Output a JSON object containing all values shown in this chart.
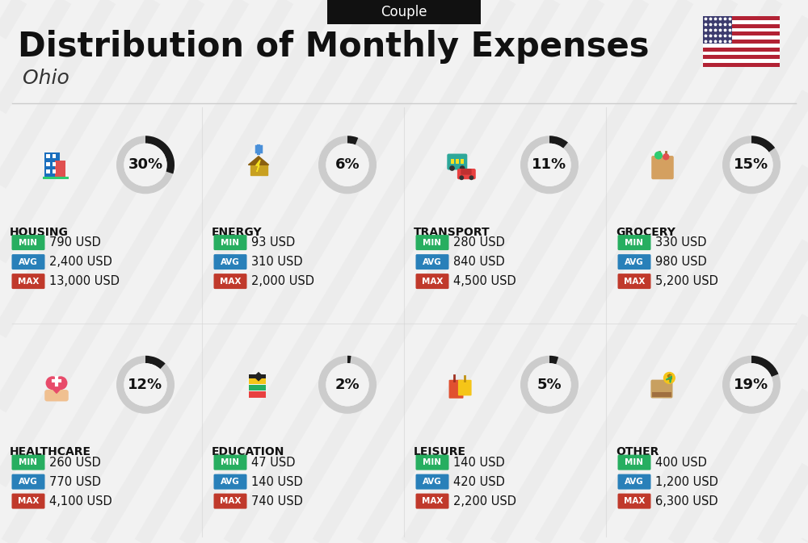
{
  "title": "Distribution of Monthly Expenses",
  "subtitle": "Ohio",
  "tag": "Couple",
  "bg_color": "#f2f2f2",
  "stripe_color": "#e8e8e8",
  "categories": [
    {
      "name": "HOUSING",
      "percent": 30,
      "min": "790 USD",
      "avg": "2,400 USD",
      "max": "13,000 USD",
      "row": 0,
      "col": 0,
      "icon_color": "#1a6ebd"
    },
    {
      "name": "ENERGY",
      "percent": 6,
      "min": "93 USD",
      "avg": "310 USD",
      "max": "2,000 USD",
      "row": 0,
      "col": 1,
      "icon_color": "#f5c518"
    },
    {
      "name": "TRANSPORT",
      "percent": 11,
      "min": "280 USD",
      "avg": "840 USD",
      "max": "4,500 USD",
      "row": 0,
      "col": 2,
      "icon_color": "#2da89a"
    },
    {
      "name": "GROCERY",
      "percent": 15,
      "min": "330 USD",
      "avg": "980 USD",
      "max": "5,200 USD",
      "row": 0,
      "col": 3,
      "icon_color": "#e8b84b"
    },
    {
      "name": "HEALTHCARE",
      "percent": 12,
      "min": "260 USD",
      "avg": "770 USD",
      "max": "4,100 USD",
      "row": 1,
      "col": 0,
      "icon_color": "#e84b6a"
    },
    {
      "name": "EDUCATION",
      "percent": 2,
      "min": "47 USD",
      "avg": "140 USD",
      "max": "740 USD",
      "row": 1,
      "col": 1,
      "icon_color": "#2da85a"
    },
    {
      "name": "LEISURE",
      "percent": 5,
      "min": "140 USD",
      "avg": "420 USD",
      "max": "2,200 USD",
      "row": 1,
      "col": 2,
      "icon_color": "#e8743a"
    },
    {
      "name": "OTHER",
      "percent": 19,
      "min": "400 USD",
      "avg": "1,200 USD",
      "max": "6,300 USD",
      "row": 1,
      "col": 3,
      "icon_color": "#c8a86e"
    }
  ],
  "min_color": "#27ae60",
  "avg_color": "#2980b9",
  "max_color": "#c0392b",
  "donut_filled_color": "#1a1a1a",
  "donut_empty_color": "#cccccc",
  "text_color": "#111111",
  "white": "#ffffff",
  "flag_stripe_red": "#B22234",
  "flag_blue": "#3C3B6E",
  "header_line_color": "#cccccc",
  "divider_color": "#d5d5d5"
}
